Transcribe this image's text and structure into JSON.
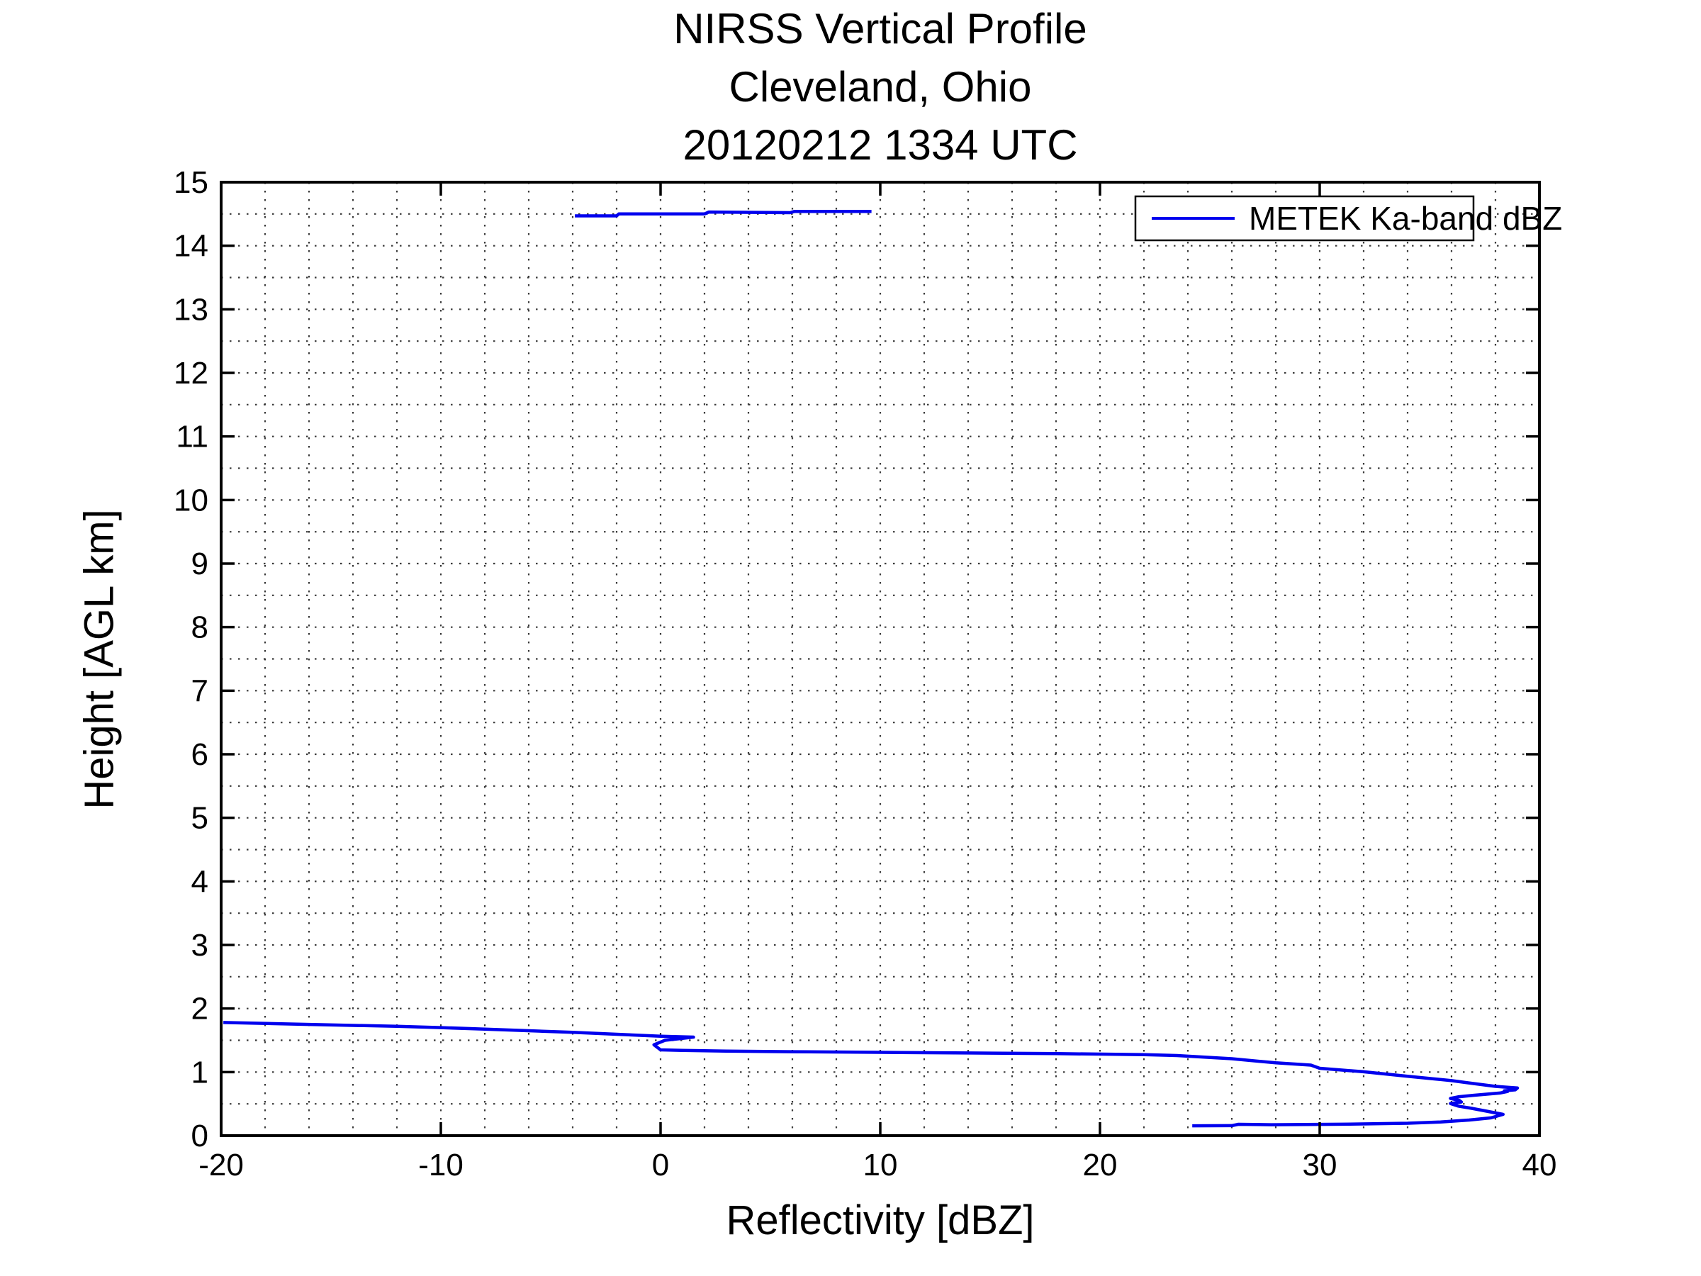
{
  "title": {
    "line1": "NIRSS Vertical Profile",
    "line2": "Cleveland, Ohio",
    "line3": "20120212 1334 UTC"
  },
  "axes": {
    "xlabel": "Reflectivity [dBZ]",
    "ylabel": "Height [AGL km]",
    "xlim": [
      -20,
      40
    ],
    "ylim": [
      0,
      15
    ],
    "x_major_ticks": [
      -20,
      -10,
      0,
      10,
      20,
      30,
      40
    ],
    "y_major_ticks": [
      0,
      1,
      2,
      3,
      4,
      5,
      6,
      7,
      8,
      9,
      10,
      11,
      12,
      13,
      14,
      15
    ],
    "x_minor_step": 2,
    "y_minor_step": 0.5,
    "grid_style": "dotted"
  },
  "legend": {
    "label": "METEK Ka-band dBZ",
    "position": "top-right-inside"
  },
  "colors": {
    "line": "#0000ee",
    "axis": "#000000",
    "grid": "#3a3a3a",
    "background": "#ffffff"
  },
  "chart_data": {
    "type": "line",
    "title": "NIRSS Vertical Profile — Cleveland, Ohio — 20120212 1334 UTC",
    "xlabel": "Reflectivity [dBZ]",
    "ylabel": "Height [AGL km]",
    "xlim": [
      -20,
      40
    ],
    "ylim": [
      0,
      15
    ],
    "legend_position": "top-right inside axes",
    "grid": "dotted major+minor (x every 2 dBZ, y every 0.5 km)",
    "series": [
      {
        "name": "METEK Ka-band dBZ",
        "color": "#0000ee",
        "units_x": "dBZ",
        "units_y": "km AGL",
        "segments": [
          [
            [
              -3.9,
              14.47
            ],
            [
              -2.0,
              14.47
            ],
            [
              -1.9,
              14.5
            ],
            [
              2.0,
              14.5
            ],
            [
              2.2,
              14.53
            ],
            [
              5.9,
              14.52
            ],
            [
              6.1,
              14.54
            ],
            [
              9.6,
              14.54
            ]
          ],
          [
            [
              -19.9,
              1.78
            ],
            [
              -16.0,
              1.75
            ],
            [
              -12.0,
              1.72
            ],
            [
              -10.0,
              1.7
            ],
            [
              -8.0,
              1.675
            ],
            [
              -6.0,
              1.65
            ],
            [
              -4.0,
              1.625
            ],
            [
              -2.0,
              1.595
            ],
            [
              0.0,
              1.565
            ],
            [
              1.5,
              1.55
            ],
            [
              0.2,
              1.5
            ],
            [
              -0.3,
              1.43
            ],
            [
              0.0,
              1.35
            ],
            [
              1.0,
              1.34
            ],
            [
              3.0,
              1.33
            ],
            [
              6.0,
              1.32
            ],
            [
              10.0,
              1.31
            ],
            [
              14.0,
              1.3
            ],
            [
              18.0,
              1.29
            ],
            [
              22.0,
              1.275
            ],
            [
              23.5,
              1.26
            ],
            [
              26.0,
              1.21
            ],
            [
              28.0,
              1.145
            ],
            [
              29.6,
              1.11
            ],
            [
              30.0,
              1.06
            ],
            [
              32.0,
              1.005
            ],
            [
              34.0,
              0.935
            ],
            [
              36.0,
              0.865
            ],
            [
              37.0,
              0.82
            ],
            [
              38.0,
              0.775
            ],
            [
              38.6,
              0.76
            ],
            [
              39.0,
              0.75
            ],
            [
              38.9,
              0.72
            ],
            [
              38.4,
              0.705
            ],
            [
              38.55,
              0.695
            ],
            [
              38.2,
              0.67
            ],
            [
              37.0,
              0.635
            ],
            [
              36.3,
              0.61
            ],
            [
              35.95,
              0.585
            ],
            [
              36.35,
              0.555
            ],
            [
              36.45,
              0.53
            ],
            [
              35.95,
              0.505
            ],
            [
              36.3,
              0.465
            ],
            [
              36.9,
              0.43
            ],
            [
              37.6,
              0.385
            ],
            [
              38.35,
              0.335
            ],
            [
              37.8,
              0.28
            ],
            [
              36.8,
              0.245
            ],
            [
              35.5,
              0.215
            ],
            [
              34.0,
              0.195
            ],
            [
              31.0,
              0.18
            ],
            [
              27.8,
              0.172
            ],
            [
              26.3,
              0.178
            ],
            [
              26.0,
              0.157
            ],
            [
              24.2,
              0.155
            ]
          ]
        ]
      }
    ]
  }
}
